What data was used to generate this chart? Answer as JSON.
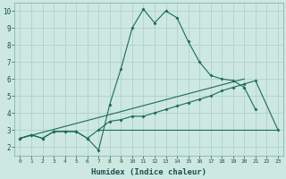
{
  "xlabel": "Humidex (Indice chaleur)",
  "xlim": [
    -0.5,
    23.5
  ],
  "ylim": [
    1.5,
    10.5
  ],
  "xticks": [
    0,
    1,
    2,
    3,
    4,
    5,
    6,
    7,
    8,
    9,
    10,
    11,
    12,
    13,
    14,
    15,
    16,
    17,
    18,
    19,
    20,
    21,
    22,
    23
  ],
  "yticks": [
    2,
    3,
    4,
    5,
    6,
    7,
    8,
    9,
    10
  ],
  "background_color": "#cce8e0",
  "grid_color": "#aacccc",
  "line_color": "#1a6b5a",
  "curve1_x": [
    0,
    1,
    2,
    3,
    4,
    5,
    6,
    7,
    8,
    9,
    10,
    11,
    12,
    13,
    14,
    15,
    16,
    17,
    18,
    19,
    20,
    21
  ],
  "curve1_y": [
    2.5,
    2.7,
    2.5,
    2.9,
    2.9,
    2.9,
    2.5,
    1.8,
    4.5,
    6.6,
    9.0,
    10.1,
    9.3,
    10.0,
    9.6,
    8.2,
    7.0,
    6.2,
    6.0,
    5.9,
    5.5,
    4.2
  ],
  "curve2_x": [
    0,
    1,
    2,
    3,
    4,
    5,
    6,
    7,
    8,
    9,
    10,
    11,
    12,
    13,
    14,
    15,
    16,
    17,
    18,
    19,
    20,
    21,
    23
  ],
  "curve2_y": [
    2.5,
    2.7,
    2.5,
    2.9,
    2.9,
    2.9,
    2.5,
    3.0,
    3.5,
    3.6,
    3.8,
    3.8,
    4.0,
    4.2,
    4.4,
    4.6,
    4.8,
    5.0,
    5.3,
    5.5,
    5.7,
    5.9,
    3.0
  ],
  "curve3_x": [
    7,
    23
  ],
  "curve3_y": [
    3.0,
    3.0
  ],
  "curve4_x": [
    0,
    20
  ],
  "curve4_y": [
    2.5,
    6.0
  ]
}
